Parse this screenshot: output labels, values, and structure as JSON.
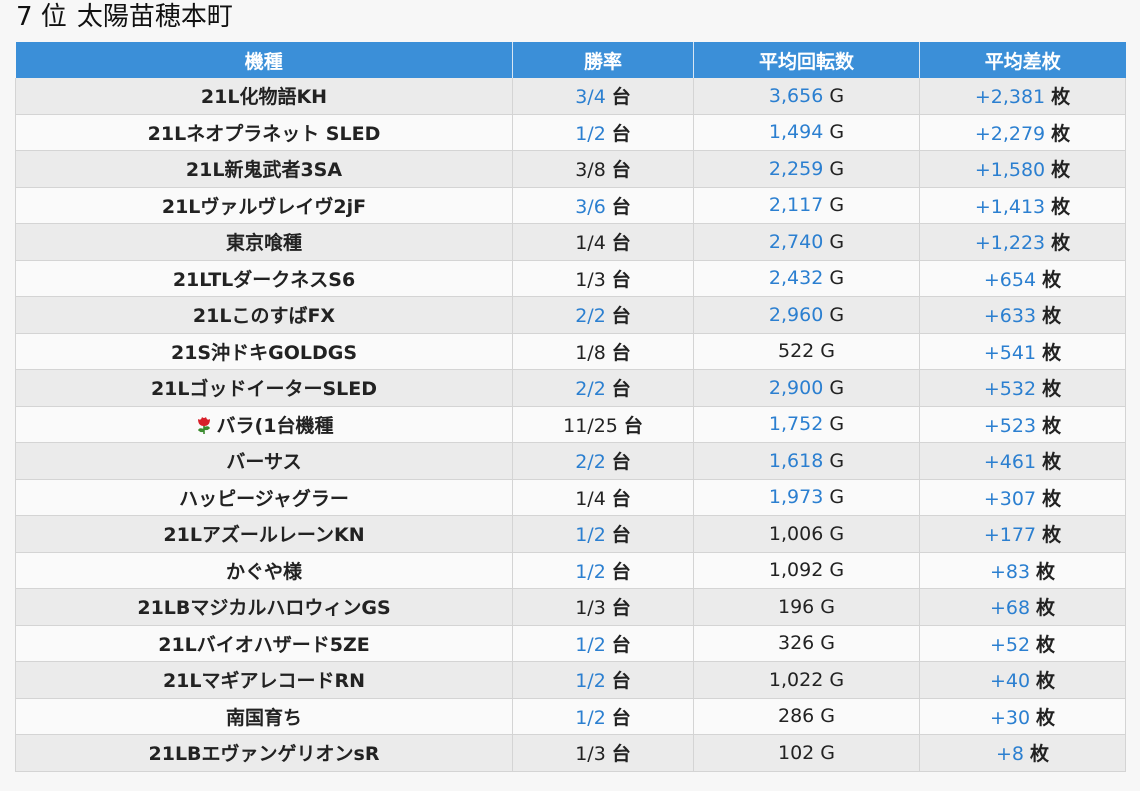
{
  "header": {
    "rank": "7 位",
    "store_name": "太陽苗穂本町"
  },
  "columns": [
    "機種",
    "勝率",
    "平均回転数",
    "平均差枚"
  ],
  "units": {
    "win_rate": "台",
    "spins": "G",
    "diff": "枚"
  },
  "colors": {
    "header_bg": "#3b8fd8",
    "highlight_blue": "#2b7fd0",
    "row_odd": "#ebebeb",
    "row_even": "#fafafa"
  },
  "rows": [
    {
      "machine": "21L化物語KH",
      "win_rate": "3/4",
      "win_blue": true,
      "spins": "3,656",
      "spins_blue": true,
      "diff": "+2,381",
      "icon": ""
    },
    {
      "machine": "21Lネオプラネット SLED",
      "win_rate": "1/2",
      "win_blue": true,
      "spins": "1,494",
      "spins_blue": true,
      "diff": "+2,279",
      "icon": ""
    },
    {
      "machine": "21L新鬼武者3SA",
      "win_rate": "3/8",
      "win_blue": false,
      "spins": "2,259",
      "spins_blue": true,
      "diff": "+1,580",
      "icon": ""
    },
    {
      "machine": "21Lヴァルヴレイヴ2jF",
      "win_rate": "3/6",
      "win_blue": true,
      "spins": "2,117",
      "spins_blue": true,
      "diff": "+1,413",
      "icon": ""
    },
    {
      "machine": "東京喰種",
      "win_rate": "1/4",
      "win_blue": false,
      "spins": "2,740",
      "spins_blue": true,
      "diff": "+1,223",
      "icon": ""
    },
    {
      "machine": "21LTLダークネスS6",
      "win_rate": "1/3",
      "win_blue": false,
      "spins": "2,432",
      "spins_blue": true,
      "diff": "+654",
      "icon": ""
    },
    {
      "machine": "21LこのすばFX",
      "win_rate": "2/2",
      "win_blue": true,
      "spins": "2,960",
      "spins_blue": true,
      "diff": "+633",
      "icon": ""
    },
    {
      "machine": "21S沖ドキGOLDGS",
      "win_rate": "1/8",
      "win_blue": false,
      "spins": "522",
      "spins_blue": false,
      "diff": "+541",
      "icon": ""
    },
    {
      "machine": "21LゴッドイーターSLED",
      "win_rate": "2/2",
      "win_blue": true,
      "spins": "2,900",
      "spins_blue": true,
      "diff": "+532",
      "icon": ""
    },
    {
      "machine": "バラ(1台機種",
      "win_rate": "11/25",
      "win_blue": false,
      "spins": "1,752",
      "spins_blue": true,
      "diff": "+523",
      "icon": "rose-icon"
    },
    {
      "machine": "バーサス",
      "win_rate": "2/2",
      "win_blue": true,
      "spins": "1,618",
      "spins_blue": true,
      "diff": "+461",
      "icon": ""
    },
    {
      "machine": "ハッピージャグラー",
      "win_rate": "1/4",
      "win_blue": false,
      "spins": "1,973",
      "spins_blue": true,
      "diff": "+307",
      "icon": ""
    },
    {
      "machine": "21LアズールレーンKN",
      "win_rate": "1/2",
      "win_blue": true,
      "spins": "1,006",
      "spins_blue": false,
      "diff": "+177",
      "icon": ""
    },
    {
      "machine": "かぐや様",
      "win_rate": "1/2",
      "win_blue": true,
      "spins": "1,092",
      "spins_blue": false,
      "diff": "+83",
      "icon": ""
    },
    {
      "machine": "21LBマジカルハロウィンGS",
      "win_rate": "1/3",
      "win_blue": false,
      "spins": "196",
      "spins_blue": false,
      "diff": "+68",
      "icon": ""
    },
    {
      "machine": "21Lバイオハザード5ZE",
      "win_rate": "1/2",
      "win_blue": true,
      "spins": "326",
      "spins_blue": false,
      "diff": "+52",
      "icon": ""
    },
    {
      "machine": "21LマギアレコードRN",
      "win_rate": "1/2",
      "win_blue": true,
      "spins": "1,022",
      "spins_blue": false,
      "diff": "+40",
      "icon": ""
    },
    {
      "machine": "南国育ち",
      "win_rate": "1/2",
      "win_blue": true,
      "spins": "286",
      "spins_blue": false,
      "diff": "+30",
      "icon": ""
    },
    {
      "machine": "21LBエヴァンゲリオンsR",
      "win_rate": "1/3",
      "win_blue": false,
      "spins": "102",
      "spins_blue": false,
      "diff": "+8",
      "icon": ""
    }
  ]
}
